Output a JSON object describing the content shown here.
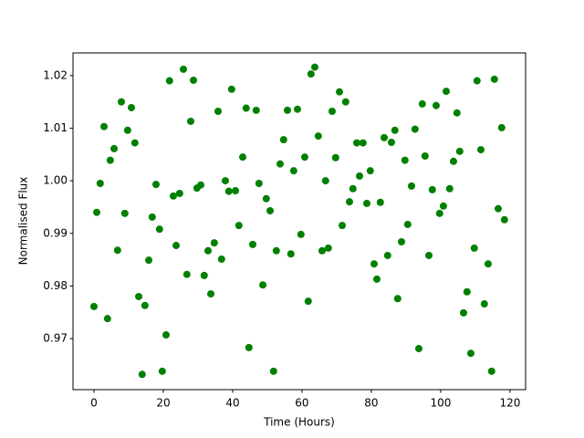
{
  "chart_data": {
    "type": "scatter",
    "xlabel": "Time (Hours)",
    "ylabel": "Normalised Flux",
    "color": "#008000",
    "xlim": [
      -6.05,
      124.5
    ],
    "ylim": [
      0.9603,
      1.0243
    ],
    "xticks": [
      0,
      20,
      40,
      60,
      80,
      100,
      120
    ],
    "yticks": [
      0.97,
      0.98,
      0.99,
      {
        "value": 1,
        "label": "1.00"
      },
      1.01,
      1.02
    ],
    "x": [
      0,
      0.8,
      1.8,
      2.9,
      3.9,
      4.7,
      5.8,
      6.8,
      7.9,
      8.9,
      9.7,
      10.8,
      11.8,
      12.9,
      13.9,
      14.7,
      15.8,
      16.8,
      17.9,
      18.9,
      19.7,
      20.8,
      21.8,
      22.9,
      23.7,
      24.7,
      25.8,
      26.8,
      27.9,
      28.7,
      29.7,
      30.8,
      31.8,
      32.9,
      33.7,
      34.7,
      35.8,
      36.8,
      37.9,
      38.9,
      39.7,
      40.8,
      41.8,
      42.9,
      43.9,
      44.7,
      45.8,
      46.8,
      47.6,
      48.7,
      49.7,
      50.8,
      51.8,
      52.6,
      53.7,
      54.7,
      55.8,
      56.8,
      57.6,
      58.7,
      59.7,
      60.8,
      61.8,
      62.6,
      63.7,
      64.7,
      65.8,
      66.8,
      67.6,
      68.7,
      69.7,
      70.8,
      71.6,
      72.6,
      73.7,
      74.7,
      75.8,
      76.6,
      77.6,
      78.7,
      79.7,
      80.8,
      81.6,
      82.6,
      83.7,
      84.7,
      85.8,
      86.8,
      87.6,
      88.7,
      89.7,
      90.5,
      91.6,
      92.6,
      93.7,
      94.7,
      95.5,
      96.6,
      97.6,
      98.7,
      99.7,
      100.8,
      101.6,
      102.6,
      103.7,
      104.7,
      105.5,
      106.6,
      107.6,
      108.7,
      109.7,
      110.5,
      111.6,
      112.6,
      113.7,
      114.7,
      115.5,
      116.6,
      117.6,
      118.4
    ],
    "values": [
      0.9761,
      0.994,
      0.9995,
      1.0103,
      0.9738,
      1.0039,
      1.0061,
      0.9868,
      1.015,
      0.9938,
      1.0096,
      1.0139,
      1.0072,
      0.978,
      0.9632,
      0.9763,
      0.9849,
      0.9931,
      0.9993,
      0.9908,
      0.9638,
      0.9707,
      1.019,
      0.9971,
      0.9877,
      0.9976,
      1.0212,
      0.9822,
      1.0113,
      1.0191,
      0.9986,
      0.9992,
      0.982,
      0.9867,
      0.9785,
      0.9882,
      1.0132,
      0.9851,
      1.0,
      0.998,
      1.0174,
      0.9981,
      0.9915,
      1.0045,
      1.0138,
      0.9683,
      0.9879,
      1.0134,
      0.9995,
      0.9802,
      0.9966,
      0.9943,
      0.9638,
      0.9867,
      1.0032,
      1.0078,
      1.0134,
      0.9861,
      1.0019,
      1.0136,
      0.9898,
      1.0045,
      0.9771,
      1.0203,
      1.0216,
      1.0085,
      0.9867,
      1.0,
      0.9872,
      1.0132,
      1.0044,
      1.0169,
      0.9915,
      1.015,
      0.996,
      0.9985,
      1.0072,
      1.0009,
      1.0072,
      0.9957,
      1.0019,
      0.9842,
      0.9813,
      0.9959,
      1.0082,
      0.9858,
      1.0073,
      1.0096,
      0.9776,
      0.9884,
      1.0039,
      0.9917,
      0.999,
      1.0098,
      0.9681,
      1.0146,
      1.0047,
      0.9858,
      0.9983,
      1.0143,
      0.9938,
      0.9952,
      1.017,
      0.9985,
      1.0037,
      1.0129,
      1.0056,
      0.9749,
      0.9789,
      0.9672,
      0.9872,
      1.019,
      1.0059,
      0.9766,
      0.9842,
      0.9638,
      1.0193,
      0.9947,
      1.0101,
      0.9926
    ]
  }
}
